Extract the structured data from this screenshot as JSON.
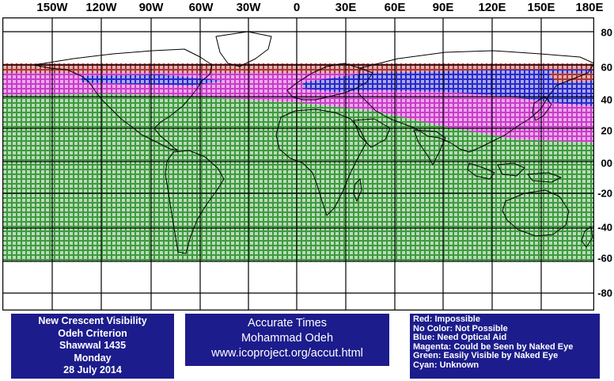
{
  "map": {
    "lon_labels": [
      "150W",
      "120W",
      "90W",
      "60W",
      "30W",
      "0",
      "30E",
      "60E",
      "90E",
      "120E",
      "150E",
      "180E"
    ],
    "lat_labels": [
      "80",
      "60",
      "40",
      "20",
      "00",
      "-20",
      "-40",
      "-60",
      "-80"
    ],
    "bands": [
      {
        "zone": "blank",
        "from_lat": 90,
        "to_lat": 60
      },
      {
        "zone": "red",
        "from_lat": 60,
        "to_lat": 53
      },
      {
        "zone": "magenta",
        "from_lat": 53,
        "to_lat": 40
      },
      {
        "zone": "green",
        "from_lat": 40,
        "to_lat": -60
      },
      {
        "zone": "blank",
        "from_lat": -60,
        "to_lat": -90
      }
    ],
    "colors": {
      "red": "#a83838",
      "magenta": "#d84ad8",
      "blue": "#2a2ac8",
      "green": "#3f9a3f",
      "grid": "#000000",
      "coast": "#000000"
    }
  },
  "info": {
    "title_lines": [
      "New Crescent Visibility",
      "Odeh Criterion",
      "Shawwal 1435",
      "Monday",
      "28 July 2014"
    ],
    "credit_lines": [
      "Accurate Times",
      "Mohammad Odeh",
      "www.icoproject.org/accut.html"
    ]
  },
  "legend": {
    "items": [
      {
        "text": "Red: Impossible",
        "color": "#a83838"
      },
      {
        "text": "No Color: Not Possible",
        "color": "#ffffff"
      },
      {
        "text": "Blue: Need Optical Aid",
        "color": "#2a2ac8"
      },
      {
        "text": "Magenta: Could be Seen by Naked Eye",
        "color": "#d84ad8"
      },
      {
        "text": "Green: Easily Visible by Naked Eye",
        "color": "#3f9a3f"
      },
      {
        "text": "Cyan: Unknown",
        "color": "#00ffff"
      }
    ]
  }
}
